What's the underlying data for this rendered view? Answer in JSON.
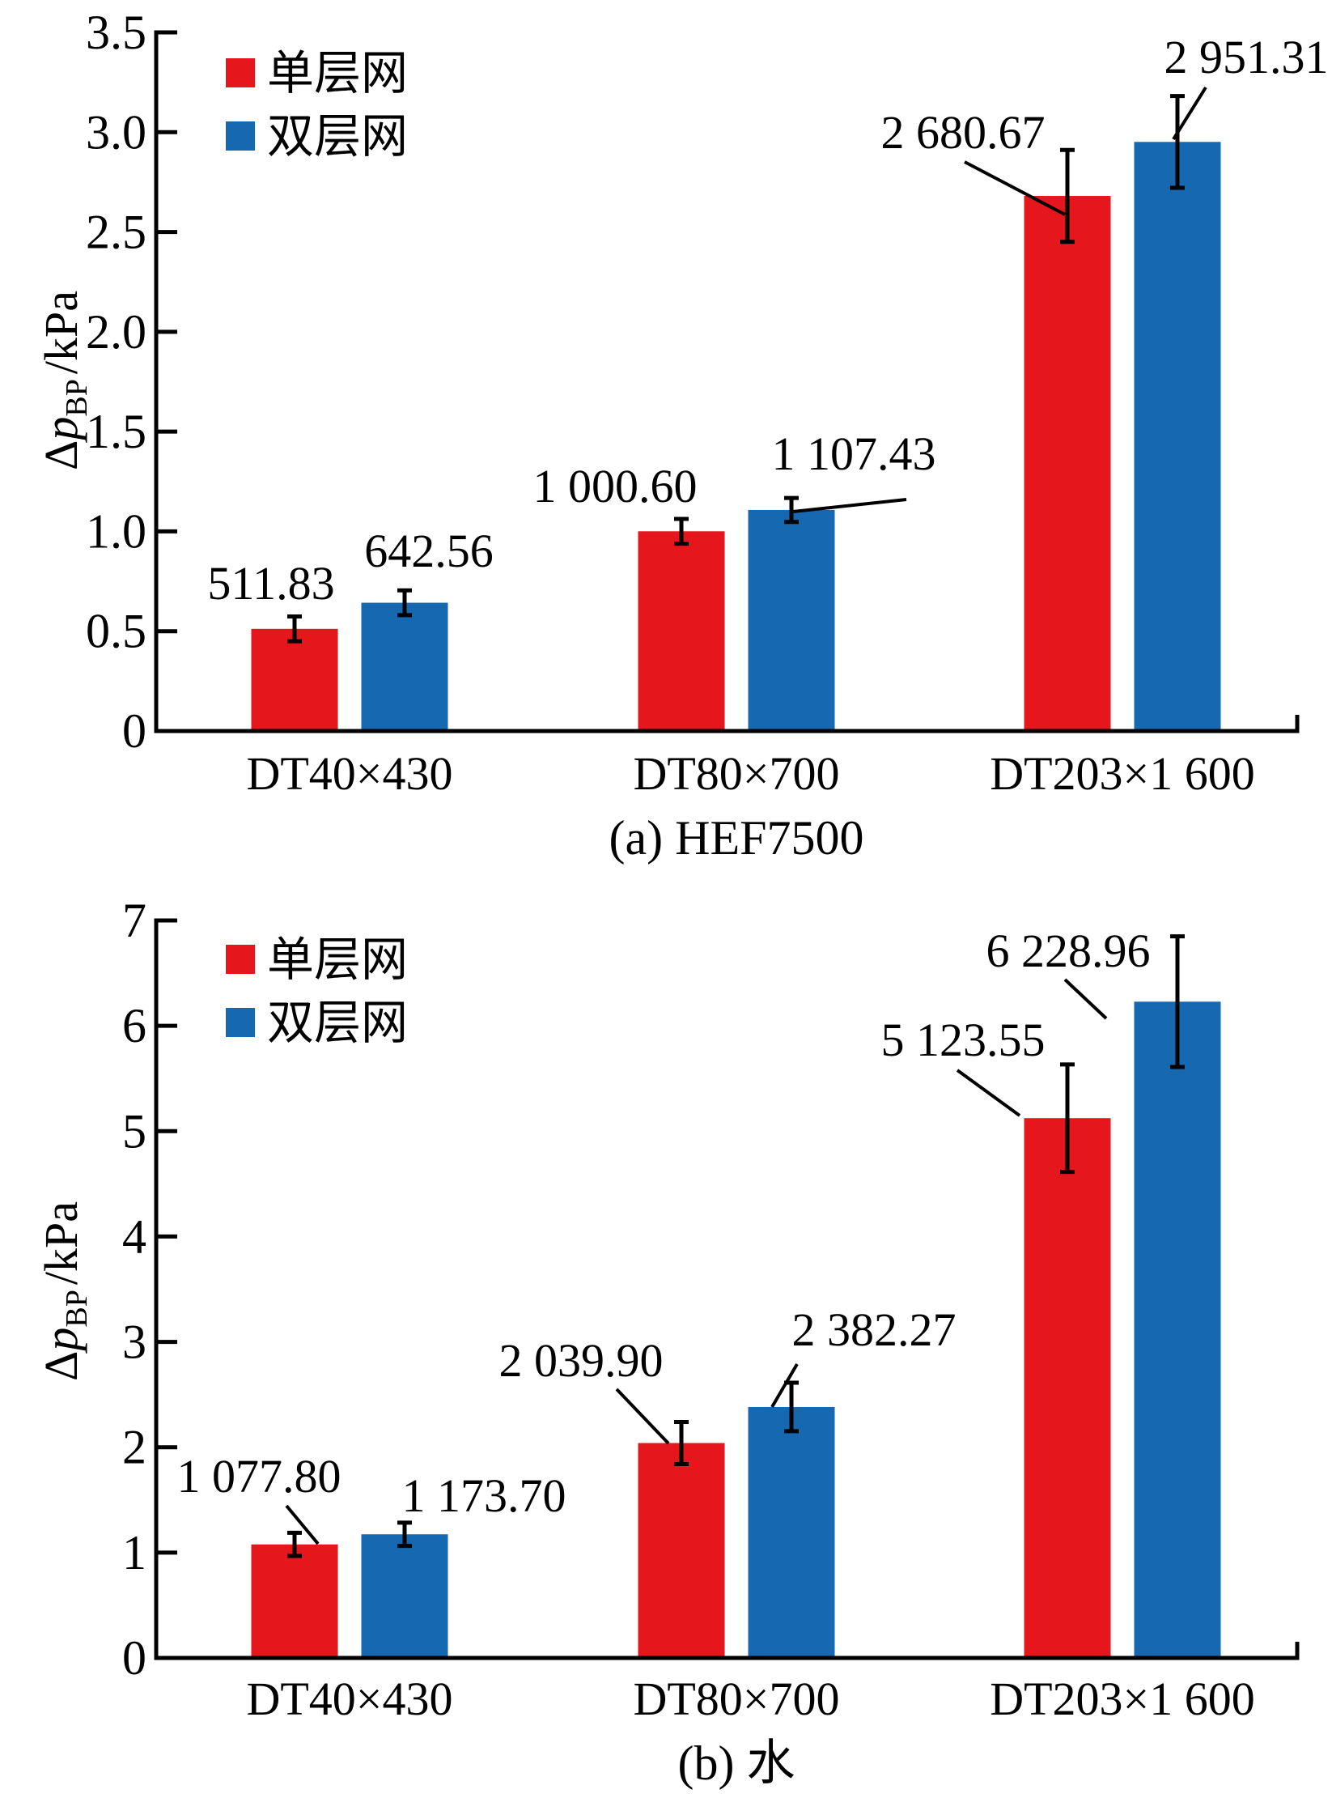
{
  "chart_data": [
    {
      "id": "a",
      "type": "bar",
      "title": "",
      "caption": "(a)  HEF7500",
      "xlabel": "",
      "ylabel": "Δp_BP /kPa",
      "ylabel_parts": {
        "delta": "Δ",
        "symbol": "p",
        "subscript": "BP",
        "unit": "/kPa"
      },
      "ylim": [
        0,
        3.5
      ],
      "yticks": [
        0,
        0.5,
        1.0,
        1.5,
        2.0,
        2.5,
        3.0,
        3.5
      ],
      "ytick_labels": [
        "0",
        "0.5",
        "1.0",
        "1.5",
        "2.0",
        "2.5",
        "3.0",
        "3.5"
      ],
      "grid": false,
      "legend_position": "top-left",
      "categories": [
        "DT40×430",
        "DT80×700",
        "DT203×1 600"
      ],
      "series": [
        {
          "name": "单层网",
          "color": "#e5161c",
          "values": [
            0.51183,
            1.0006,
            2.68067
          ],
          "errors": [
            0.062,
            0.062,
            0.23
          ],
          "data_labels": [
            "511.83",
            "1 000.60",
            "2 680.67"
          ]
        },
        {
          "name": "双层网",
          "color": "#1669b0",
          "values": [
            0.64256,
            1.10743,
            2.95131
          ],
          "errors": [
            0.062,
            0.06,
            0.23
          ],
          "data_labels": [
            "642.56",
            "1 107.43",
            "2 951.31"
          ]
        }
      ]
    },
    {
      "id": "b",
      "type": "bar",
      "title": "",
      "caption": "(b)  水",
      "xlabel": "",
      "ylabel": "Δp_BP /kPa",
      "ylabel_parts": {
        "delta": "Δ",
        "symbol": "p",
        "subscript": "BP",
        "unit": "/kPa"
      },
      "ylim": [
        0,
        7
      ],
      "yticks": [
        0,
        1,
        2,
        3,
        4,
        5,
        6,
        7
      ],
      "ytick_labels": [
        "0",
        "1",
        "2",
        "3",
        "4",
        "5",
        "6",
        "7"
      ],
      "grid": false,
      "legend_position": "top-left",
      "categories": [
        "DT40×430",
        "DT80×700",
        "DT203×1 600"
      ],
      "series": [
        {
          "name": "单层网",
          "color": "#e5161c",
          "values": [
            1.0778,
            2.0399,
            5.12355
          ],
          "errors": [
            0.11,
            0.2,
            0.51
          ],
          "data_labels": [
            "1 077.80",
            "2 039.90",
            "5 123.55"
          ]
        },
        {
          "name": "双层网",
          "color": "#1669b0",
          "values": [
            1.1737,
            2.38227,
            6.22896
          ],
          "errors": [
            0.11,
            0.23,
            0.62
          ],
          "data_labels": [
            "1 173.70",
            "2 382.27",
            "6 228.96"
          ]
        }
      ]
    }
  ]
}
